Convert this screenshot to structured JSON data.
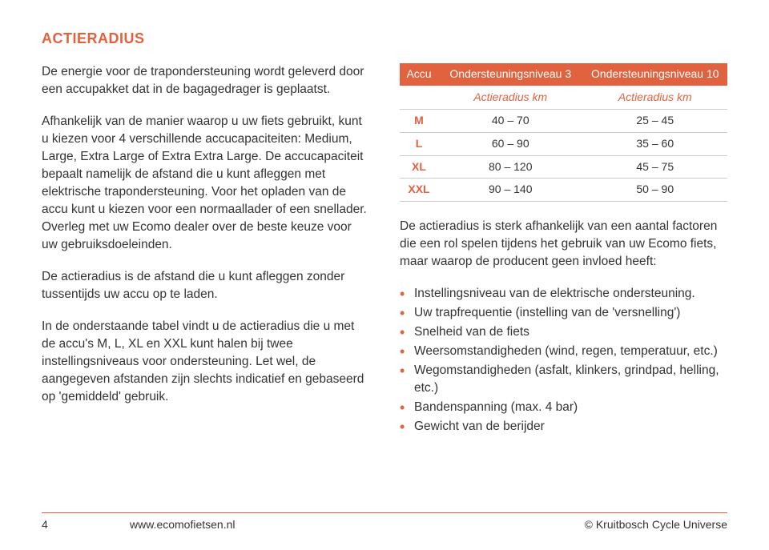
{
  "colors": {
    "accent": "#e1623f",
    "text": "#333333",
    "border": "#cccccc",
    "background": "#ffffff"
  },
  "heading": "ACTIERADIUS",
  "left": {
    "p1": "De energie voor de trapondersteuning wordt geleverd door een accupakket dat in de bagagedrager is geplaatst.",
    "p2": "Afhankelijk van de manier waarop u uw fiets gebruikt, kunt u kiezen voor 4 verschillende accucapaciteiten: Medium, Large, Extra Large of Extra Extra Large. De accucapaciteit bepaalt namelijk de afstand die u kunt afleggen met elektrische trapondersteuning. Voor het opladen van de accu kunt u kiezen voor een normaallader of een snellader. Overleg met uw Ecomo dealer over de beste keuze voor uw gebruiksdoeleinden.",
    "p3": "De actieradius is de afstand die u kunt afleggen zonder tussentijds uw accu op te laden.",
    "p4": "In de onderstaande tabel vindt u de actieradius die u met de accu's M, L, XL en XXL kunt halen bij twee instellingsniveaus voor ondersteuning. Let wel, de aangegeven afstanden zijn slechts indicatief en gebaseerd op 'gemiddeld' gebruik."
  },
  "table": {
    "columns": [
      "Accu",
      "Ondersteuningsniveau 3",
      "Ondersteuningsniveau 10"
    ],
    "subheaders": [
      "",
      "Actieradius km",
      "Actieradius km"
    ],
    "rows": [
      [
        "M",
        "40 – 70",
        "25 – 45"
      ],
      [
        "L",
        "60 – 90",
        "35 – 60"
      ],
      [
        "XL",
        "80 – 120",
        "45 – 75"
      ],
      [
        "XXL",
        "90 – 140",
        "50 – 90"
      ]
    ]
  },
  "right": {
    "p1": "De actieradius is sterk afhankelijk van een aantal factoren die een rol spelen tijdens het gebruik van uw Ecomo fiets, maar waarop de producent geen invloed heeft:"
  },
  "bullets": [
    "Instellingsniveau van de elektrische ondersteuning.",
    "Uw trapfrequentie (instelling van de 'versnelling')",
    "Snelheid van de fiets",
    "Weersomstandigheden (wind, regen, temperatuur, etc.)",
    "Wegomstandigheden (asfalt, klinkers, grindpad, helling, etc.)",
    "Bandenspanning (max. 4 bar)",
    "Gewicht van de berijder"
  ],
  "footer": {
    "page": "4",
    "url": "www.ecomofietsen.nl",
    "copyright": "© Kruitbosch Cycle Universe"
  }
}
